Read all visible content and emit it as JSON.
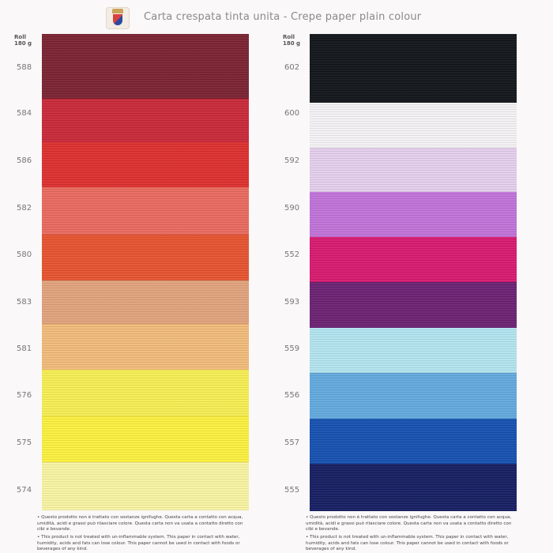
{
  "header": {
    "title": "Carta crespata tinta unita - Crepe paper plain colour",
    "logo": "crest-logo"
  },
  "roll_label": {
    "line1": "Roll",
    "line2": "180 g"
  },
  "columns": [
    {
      "swatches": [
        {
          "code": "588",
          "color": "#7a2232"
        },
        {
          "code": "584",
          "color": "#c92838"
        },
        {
          "code": "586",
          "color": "#dc2f2e"
        },
        {
          "code": "582",
          "color": "#e9695e"
        },
        {
          "code": "580",
          "color": "#e6532f"
        },
        {
          "code": "583",
          "color": "#e1a27c"
        },
        {
          "code": "581",
          "color": "#f1ba7a"
        },
        {
          "code": "576",
          "color": "#f6ee52"
        },
        {
          "code": "575",
          "color": "#fbf03e"
        },
        {
          "code": "574",
          "color": "#f8f3a2"
        }
      ]
    },
    {
      "swatches": [
        {
          "code": "602",
          "color": "#11151a"
        },
        {
          "code": "600",
          "color": "#f3f1f4"
        },
        {
          "code": "592",
          "color": "#e4cfec"
        },
        {
          "code": "590",
          "color": "#c072d8"
        },
        {
          "code": "552",
          "color": "#d8196f"
        },
        {
          "code": "593",
          "color": "#6b2172"
        },
        {
          "code": "559",
          "color": "#b2e4ef"
        },
        {
          "code": "556",
          "color": "#62a9dd"
        },
        {
          "code": "557",
          "color": "#1550b0"
        },
        {
          "code": "555",
          "color": "#151e62"
        }
      ]
    }
  ],
  "notes": {
    "it": "• Questo prodotto non è trattato con sostanze ignifughe. Questa carta a contatto con acqua, umidità, acidi e grassi può rilasciare colore. Questa carta non va usata a contatto diretto con cibi e bevande.",
    "en": "• This product is not treated with un-inflammable system. This paper in contact with water, humidity, acids and fats can lose colour. This paper cannot be used in contact with foods or beverages of any kind."
  }
}
